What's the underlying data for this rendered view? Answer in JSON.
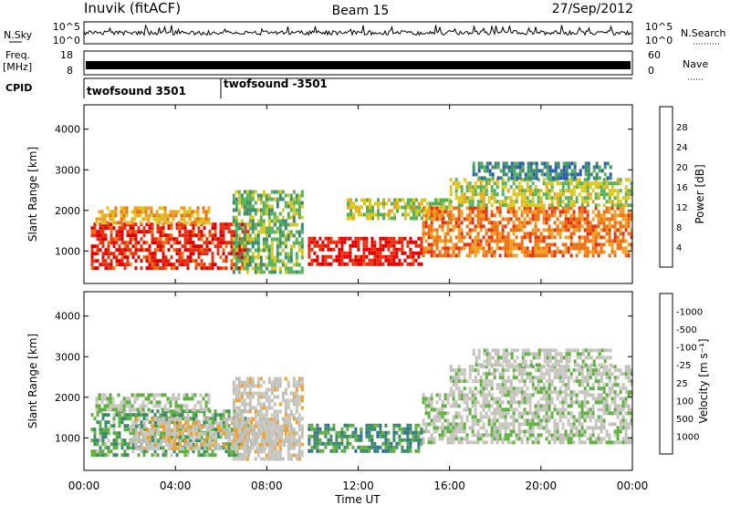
{
  "header": {
    "station": "Inuvik (fitACF)",
    "beam": "Beam 15",
    "date": "27/Sep/2012"
  },
  "panels": {
    "nsky": {
      "label": "N.Sky",
      "ticks": [
        "10^5",
        "10^0"
      ],
      "right_ticks": [
        "10^5",
        "10^0"
      ],
      "right_label": "N.Search"
    },
    "freq": {
      "label_top": "Freq.",
      "label_bottom": "[MHz]",
      "ticks": [
        "18",
        "8"
      ],
      "right_ticks": [
        "60",
        "0"
      ],
      "right_label": "Nave"
    },
    "cpid": {
      "label": "CPID",
      "entries": [
        {
          "name": "twofsound 3501",
          "start": "00:00"
        },
        {
          "name": "twofsound -3501",
          "start": "06:00"
        }
      ]
    }
  },
  "colors": {
    "power_scale": [
      "#1e1ee6",
      "#2a5bb0",
      "#3d8a6e",
      "#58b05a",
      "#d8c820",
      "#f0a020",
      "#f07010",
      "#e83010",
      "#e00000"
    ],
    "velocity_scale": [
      "#1840a0",
      "#2c6aa8",
      "#3a8a6a",
      "#5fb040",
      "#c8c8c0",
      "#c0c0b8",
      "#f0a030",
      "#f07010",
      "#e82010"
    ]
  },
  "chart_data": [
    {
      "type": "heatmap",
      "title": "",
      "xlabel": "Time UT",
      "ylabel": "Slant Range [km]",
      "xticks": [
        "00:00",
        "04:00",
        "08:00",
        "12:00",
        "16:00",
        "20:00",
        "00:00"
      ],
      "yticks": [
        "1000",
        "2000",
        "3000",
        "4000"
      ],
      "xlim": [
        0,
        24
      ],
      "ylim": [
        200,
        4600
      ],
      "colorbar": {
        "label": "Power [dB]",
        "ticks": [
          "4",
          "8",
          "12",
          "16",
          "20",
          "24",
          "28"
        ],
        "range": [
          0,
          30
        ]
      },
      "regions": [
        {
          "t": [
            0.3,
            7.2
          ],
          "r": [
            600,
            1700
          ],
          "v": 26
        },
        {
          "t": [
            0.5,
            5.5
          ],
          "r": [
            1700,
            2100
          ],
          "v": 18
        },
        {
          "t": [
            6.5,
            9.5
          ],
          "r": [
            500,
            2500
          ],
          "v": 12
        },
        {
          "t": [
            9.8,
            14.8
          ],
          "r": [
            650,
            1350
          ],
          "v": 27
        },
        {
          "t": [
            11.5,
            16.0
          ],
          "r": [
            1800,
            2300
          ],
          "v": 14
        },
        {
          "t": [
            14.8,
            24.0
          ],
          "r": [
            900,
            2100
          ],
          "v": 21
        },
        {
          "t": [
            16.0,
            24.0
          ],
          "r": [
            2100,
            2800
          ],
          "v": 14
        },
        {
          "t": [
            17.0,
            23.0
          ],
          "r": [
            2800,
            3200
          ],
          "v": 8
        }
      ]
    },
    {
      "type": "heatmap",
      "title": "",
      "xlabel": "Time UT",
      "ylabel": "Slant Range [km]",
      "xticks": [
        "00:00",
        "04:00",
        "08:00",
        "12:00",
        "16:00",
        "20:00",
        "00:00"
      ],
      "yticks": [
        "1000",
        "2000",
        "3000",
        "4000"
      ],
      "xlim": [
        0,
        24
      ],
      "ylim": [
        200,
        4600
      ],
      "colorbar": {
        "label": "Velocity [m s⁻¹]",
        "ticks": [
          "1000",
          "500",
          "100",
          "25",
          "-25",
          "-100",
          "-500",
          "-1000"
        ],
        "range": [
          -1000,
          1000
        ]
      },
      "regions": [
        {
          "t": [
            0.3,
            7.2
          ],
          "r": [
            600,
            1700
          ],
          "v": -300
        },
        {
          "t": [
            2.0,
            9.0
          ],
          "r": [
            700,
            1500
          ],
          "v": 200
        },
        {
          "t": [
            0.5,
            5.5
          ],
          "r": [
            1700,
            2100
          ],
          "v": -60
        },
        {
          "t": [
            6.5,
            9.5
          ],
          "r": [
            500,
            2500
          ],
          "v": 150
        },
        {
          "t": [
            9.8,
            14.8
          ],
          "r": [
            650,
            1350
          ],
          "v": -400
        },
        {
          "t": [
            14.8,
            24.0
          ],
          "r": [
            900,
            2100
          ],
          "v": 0
        },
        {
          "t": [
            16.0,
            24.0
          ],
          "r": [
            2100,
            2800
          ],
          "v": 5
        },
        {
          "t": [
            17.0,
            23.0
          ],
          "r": [
            2800,
            3200
          ],
          "v": 10
        }
      ]
    }
  ]
}
